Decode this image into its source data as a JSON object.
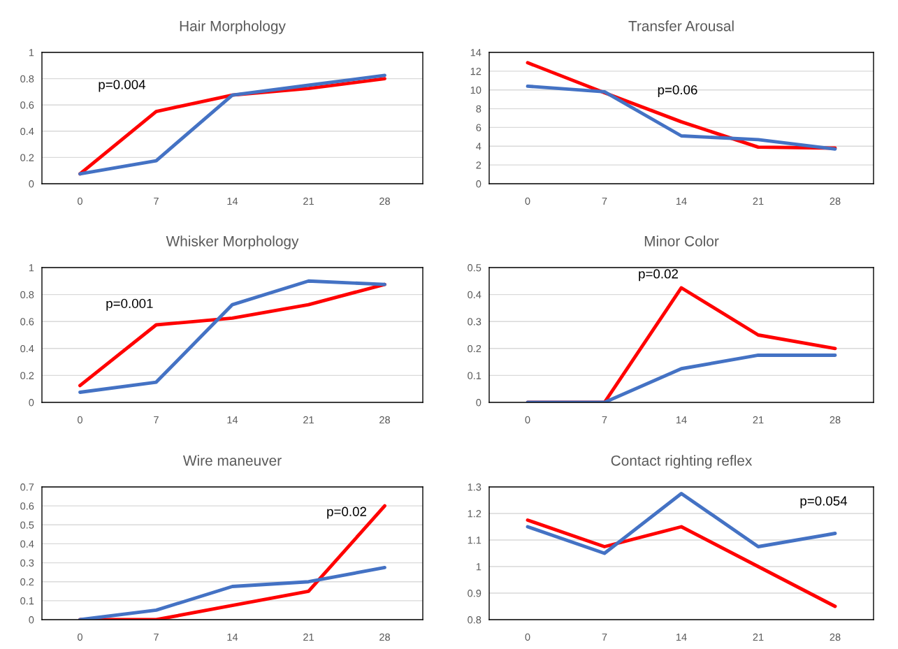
{
  "chart_data": [
    {
      "type": "line",
      "title": "Hair Morphology",
      "categories": [
        "0",
        "7",
        "14",
        "21",
        "28"
      ],
      "ylim": [
        0,
        1
      ],
      "yticks": [
        0,
        0.2,
        0.4,
        0.6,
        0.8,
        1
      ],
      "grid": "y",
      "legend": false,
      "series": [
        {
          "color": "#ff0000",
          "values": [
            0.075,
            0.55,
            0.675,
            0.725,
            0.8
          ]
        },
        {
          "color": "#4472c4",
          "values": [
            0.075,
            0.175,
            0.675,
            0.75,
            0.825
          ]
        }
      ],
      "annotations": [
        "p=0.004"
      ]
    },
    {
      "type": "line",
      "title": "Transfer Arousal",
      "categories": [
        "0",
        "7",
        "14",
        "21",
        "28"
      ],
      "ylim": [
        0,
        14
      ],
      "yticks": [
        0,
        2,
        4,
        6,
        8,
        10,
        12,
        14
      ],
      "grid": "y",
      "legend": false,
      "series": [
        {
          "color": "#ff0000",
          "values": [
            12.9,
            9.7,
            6.6,
            3.9,
            3.8
          ]
        },
        {
          "color": "#4472c4",
          "values": [
            10.4,
            9.8,
            5.1,
            4.7,
            3.7
          ]
        }
      ],
      "annotations": [
        "p=0.06"
      ]
    },
    {
      "type": "line",
      "title": "Whisker Morphology",
      "categories": [
        "0",
        "7",
        "14",
        "21",
        "28"
      ],
      "ylim": [
        0,
        1
      ],
      "yticks": [
        0,
        0.2,
        0.4,
        0.6,
        0.8,
        1
      ],
      "grid": "y",
      "legend": false,
      "series": [
        {
          "color": "#ff0000",
          "values": [
            0.125,
            0.575,
            0.625,
            0.725,
            0.875
          ]
        },
        {
          "color": "#4472c4",
          "values": [
            0.075,
            0.15,
            0.725,
            0.9,
            0.875
          ]
        }
      ],
      "annotations": [
        "p=0.001"
      ]
    },
    {
      "type": "line",
      "title": "Minor Color",
      "categories": [
        "0",
        "7",
        "14",
        "21",
        "28"
      ],
      "ylim": [
        0,
        0.5
      ],
      "yticks": [
        0,
        0.1,
        0.2,
        0.3,
        0.4,
        0.5
      ],
      "grid": "y",
      "legend": false,
      "series": [
        {
          "color": "#ff0000",
          "values": [
            0,
            0,
            0.425,
            0.25,
            0.2
          ]
        },
        {
          "color": "#4472c4",
          "values": [
            0,
            0,
            0.125,
            0.175,
            0.175
          ]
        }
      ],
      "annotations": [
        "p=0.02"
      ]
    },
    {
      "type": "line",
      "title": "Wire maneuver",
      "categories": [
        "0",
        "7",
        "14",
        "21",
        "28"
      ],
      "ylim": [
        0,
        0.7
      ],
      "yticks": [
        0,
        0.1,
        0.2,
        0.3,
        0.4,
        0.5,
        0.6,
        0.7
      ],
      "grid": "y",
      "legend": false,
      "series": [
        {
          "color": "#ff0000",
          "values": [
            0,
            0,
            0.075,
            0.15,
            0.6
          ]
        },
        {
          "color": "#4472c4",
          "values": [
            0,
            0.05,
            0.175,
            0.2,
            0.275
          ]
        }
      ],
      "annotations": [
        "p=0.02"
      ]
    },
    {
      "type": "line",
      "title": "Contact righting reflex",
      "categories": [
        "0",
        "7",
        "14",
        "21",
        "28"
      ],
      "ylim": [
        0.8,
        1.3
      ],
      "yticks": [
        0.8,
        0.9,
        1,
        1.1,
        1.2,
        1.3
      ],
      "grid": "y",
      "legend": false,
      "series": [
        {
          "color": "#ff0000",
          "values": [
            1.175,
            1.075,
            1.15,
            1.0,
            0.85
          ]
        },
        {
          "color": "#4472c4",
          "values": [
            1.15,
            1.05,
            1.275,
            1.075,
            1.125
          ]
        }
      ],
      "annotations": [
        "p=0.054"
      ]
    }
  ]
}
